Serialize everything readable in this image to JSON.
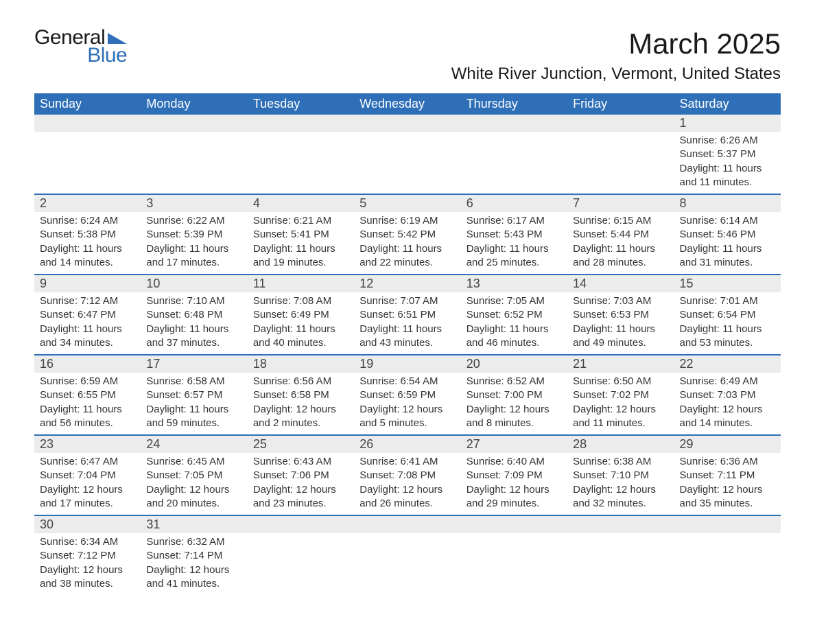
{
  "brand": {
    "word1": "General",
    "word2": "Blue"
  },
  "title": "March 2025",
  "location": "White River Junction, Vermont, United States",
  "colors": {
    "header_bg": "#2e6fb8",
    "header_text": "#ffffff",
    "daynum_bg": "#ececec",
    "row_divider": "#2e6fb8",
    "body_text": "#333333",
    "logo_blue": "#2e6fb8",
    "logo_black": "#1a1a1a",
    "page_bg": "#ffffff"
  },
  "typography": {
    "title_fontsize": 42,
    "location_fontsize": 24,
    "header_fontsize": 18,
    "daynum_fontsize": 18,
    "detail_fontsize": 15,
    "logo_fontsize": 30,
    "font_family": "Arial"
  },
  "day_labels": [
    "Sunday",
    "Monday",
    "Tuesday",
    "Wednesday",
    "Thursday",
    "Friday",
    "Saturday"
  ],
  "weeks": [
    [
      null,
      null,
      null,
      null,
      null,
      null,
      {
        "n": "1",
        "sunrise": "6:26 AM",
        "sunset": "5:37 PM",
        "daylight": "11 hours and 11 minutes."
      }
    ],
    [
      {
        "n": "2",
        "sunrise": "6:24 AM",
        "sunset": "5:38 PM",
        "daylight": "11 hours and 14 minutes."
      },
      {
        "n": "3",
        "sunrise": "6:22 AM",
        "sunset": "5:39 PM",
        "daylight": "11 hours and 17 minutes."
      },
      {
        "n": "4",
        "sunrise": "6:21 AM",
        "sunset": "5:41 PM",
        "daylight": "11 hours and 19 minutes."
      },
      {
        "n": "5",
        "sunrise": "6:19 AM",
        "sunset": "5:42 PM",
        "daylight": "11 hours and 22 minutes."
      },
      {
        "n": "6",
        "sunrise": "6:17 AM",
        "sunset": "5:43 PM",
        "daylight": "11 hours and 25 minutes."
      },
      {
        "n": "7",
        "sunrise": "6:15 AM",
        "sunset": "5:44 PM",
        "daylight": "11 hours and 28 minutes."
      },
      {
        "n": "8",
        "sunrise": "6:14 AM",
        "sunset": "5:46 PM",
        "daylight": "11 hours and 31 minutes."
      }
    ],
    [
      {
        "n": "9",
        "sunrise": "7:12 AM",
        "sunset": "6:47 PM",
        "daylight": "11 hours and 34 minutes."
      },
      {
        "n": "10",
        "sunrise": "7:10 AM",
        "sunset": "6:48 PM",
        "daylight": "11 hours and 37 minutes."
      },
      {
        "n": "11",
        "sunrise": "7:08 AM",
        "sunset": "6:49 PM",
        "daylight": "11 hours and 40 minutes."
      },
      {
        "n": "12",
        "sunrise": "7:07 AM",
        "sunset": "6:51 PM",
        "daylight": "11 hours and 43 minutes."
      },
      {
        "n": "13",
        "sunrise": "7:05 AM",
        "sunset": "6:52 PM",
        "daylight": "11 hours and 46 minutes."
      },
      {
        "n": "14",
        "sunrise": "7:03 AM",
        "sunset": "6:53 PM",
        "daylight": "11 hours and 49 minutes."
      },
      {
        "n": "15",
        "sunrise": "7:01 AM",
        "sunset": "6:54 PM",
        "daylight": "11 hours and 53 minutes."
      }
    ],
    [
      {
        "n": "16",
        "sunrise": "6:59 AM",
        "sunset": "6:55 PM",
        "daylight": "11 hours and 56 minutes."
      },
      {
        "n": "17",
        "sunrise": "6:58 AM",
        "sunset": "6:57 PM",
        "daylight": "11 hours and 59 minutes."
      },
      {
        "n": "18",
        "sunrise": "6:56 AM",
        "sunset": "6:58 PM",
        "daylight": "12 hours and 2 minutes."
      },
      {
        "n": "19",
        "sunrise": "6:54 AM",
        "sunset": "6:59 PM",
        "daylight": "12 hours and 5 minutes."
      },
      {
        "n": "20",
        "sunrise": "6:52 AM",
        "sunset": "7:00 PM",
        "daylight": "12 hours and 8 minutes."
      },
      {
        "n": "21",
        "sunrise": "6:50 AM",
        "sunset": "7:02 PM",
        "daylight": "12 hours and 11 minutes."
      },
      {
        "n": "22",
        "sunrise": "6:49 AM",
        "sunset": "7:03 PM",
        "daylight": "12 hours and 14 minutes."
      }
    ],
    [
      {
        "n": "23",
        "sunrise": "6:47 AM",
        "sunset": "7:04 PM",
        "daylight": "12 hours and 17 minutes."
      },
      {
        "n": "24",
        "sunrise": "6:45 AM",
        "sunset": "7:05 PM",
        "daylight": "12 hours and 20 minutes."
      },
      {
        "n": "25",
        "sunrise": "6:43 AM",
        "sunset": "7:06 PM",
        "daylight": "12 hours and 23 minutes."
      },
      {
        "n": "26",
        "sunrise": "6:41 AM",
        "sunset": "7:08 PM",
        "daylight": "12 hours and 26 minutes."
      },
      {
        "n": "27",
        "sunrise": "6:40 AM",
        "sunset": "7:09 PM",
        "daylight": "12 hours and 29 minutes."
      },
      {
        "n": "28",
        "sunrise": "6:38 AM",
        "sunset": "7:10 PM",
        "daylight": "12 hours and 32 minutes."
      },
      {
        "n": "29",
        "sunrise": "6:36 AM",
        "sunset": "7:11 PM",
        "daylight": "12 hours and 35 minutes."
      }
    ],
    [
      {
        "n": "30",
        "sunrise": "6:34 AM",
        "sunset": "7:12 PM",
        "daylight": "12 hours and 38 minutes."
      },
      {
        "n": "31",
        "sunrise": "6:32 AM",
        "sunset": "7:14 PM",
        "daylight": "12 hours and 41 minutes."
      },
      null,
      null,
      null,
      null,
      null
    ]
  ],
  "labels": {
    "sunrise": "Sunrise: ",
    "sunset": "Sunset: ",
    "daylight": "Daylight: "
  }
}
